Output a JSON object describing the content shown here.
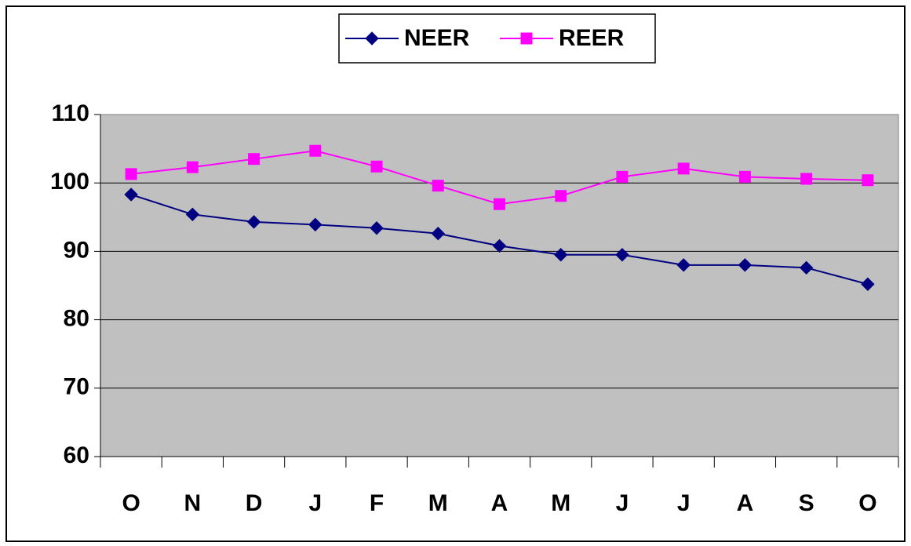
{
  "chart_data": {
    "type": "line",
    "categories": [
      "O",
      "N",
      "D",
      "J",
      "F",
      "M",
      "A",
      "M",
      "J",
      "J",
      "A",
      "S",
      "O"
    ],
    "series": [
      {
        "name": "NEER",
        "color": "#000080",
        "marker": "diamond",
        "values": [
          98.3,
          95.4,
          94.3,
          93.9,
          93.4,
          92.6,
          90.8,
          89.5,
          89.5,
          88.0,
          88.0,
          87.6,
          85.2
        ]
      },
      {
        "name": "REER",
        "color": "#ff00ff",
        "marker": "square",
        "values": [
          101.3,
          102.3,
          103.5,
          104.7,
          102.4,
          99.6,
          96.9,
          98.1,
          100.9,
          102.1,
          100.9,
          100.6,
          100.4
        ]
      }
    ],
    "ylim": [
      60,
      110
    ],
    "yticks": [
      60,
      70,
      80,
      90,
      100,
      110
    ],
    "grid": true,
    "legend": "top"
  }
}
